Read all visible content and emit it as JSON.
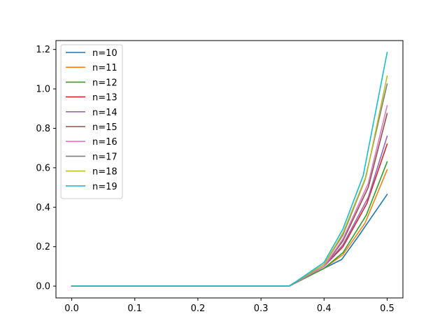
{
  "chart_data": {
    "type": "line",
    "title": "",
    "xlabel": "",
    "ylabel": "",
    "xlim": [
      -0.025,
      0.525
    ],
    "ylim": [
      -0.06,
      1.245
    ],
    "grid": false,
    "legend_position": "top-left",
    "x_ticks": [
      {
        "value": 0.0,
        "label": "0.0"
      },
      {
        "value": 0.1,
        "label": "0.1"
      },
      {
        "value": 0.2,
        "label": "0.2"
      },
      {
        "value": 0.3,
        "label": "0.3"
      },
      {
        "value": 0.4,
        "label": "0.4"
      },
      {
        "value": 0.5,
        "label": "0.5"
      }
    ],
    "y_ticks": [
      {
        "value": 0.0,
        "label": "0.0"
      },
      {
        "value": 0.2,
        "label": "0.2"
      },
      {
        "value": 0.4,
        "label": "0.4"
      },
      {
        "value": 0.6,
        "label": "0.6"
      },
      {
        "value": 0.8,
        "label": "0.8"
      },
      {
        "value": 1.0,
        "label": "1.0"
      },
      {
        "value": 1.2,
        "label": "1.2"
      }
    ],
    "series": [
      {
        "name": "n=10",
        "color": "#1f77b4",
        "x": [
          0.0,
          0.1,
          0.2,
          0.3,
          0.333,
          0.344,
          0.4,
          0.428,
          0.456,
          0.5
        ],
        "y": [
          0.0,
          0.0,
          0.0,
          0.0,
          0.0,
          0.0,
          0.09,
          0.135,
          0.26,
          0.465
        ]
      },
      {
        "name": "n=11",
        "color": "#ff7f0e",
        "x": [
          0.0,
          0.1,
          0.2,
          0.3,
          0.336,
          0.345,
          0.4,
          0.43,
          0.465,
          0.5
        ],
        "y": [
          0.0,
          0.0,
          0.0,
          0.0,
          0.0,
          0.0,
          0.09,
          0.16,
          0.32,
          0.59
        ]
      },
      {
        "name": "n=12",
        "color": "#2ca02c",
        "x": [
          0.0,
          0.1,
          0.2,
          0.3,
          0.333,
          0.345,
          0.4,
          0.43,
          0.467,
          0.5
        ],
        "y": [
          0.0,
          0.0,
          0.0,
          0.0,
          0.0,
          0.0,
          0.09,
          0.17,
          0.36,
          0.63
        ]
      },
      {
        "name": "n=13",
        "color": "#d62728",
        "x": [
          0.0,
          0.1,
          0.2,
          0.3,
          0.334,
          0.345,
          0.4,
          0.43,
          0.468,
          0.5
        ],
        "y": [
          0.0,
          0.0,
          0.0,
          0.0,
          0.0,
          0.0,
          0.1,
          0.2,
          0.42,
          0.72
        ]
      },
      {
        "name": "n=14",
        "color": "#9467bd",
        "x": [
          0.0,
          0.1,
          0.2,
          0.3,
          0.335,
          0.345,
          0.4,
          0.43,
          0.47,
          0.5
        ],
        "y": [
          0.0,
          0.0,
          0.0,
          0.0,
          0.0,
          0.0,
          0.1,
          0.21,
          0.45,
          0.76
        ]
      },
      {
        "name": "n=15",
        "color": "#8c564b",
        "x": [
          0.0,
          0.1,
          0.2,
          0.3,
          0.333,
          0.344,
          0.4,
          0.43,
          0.47,
          0.5
        ],
        "y": [
          0.0,
          0.0,
          0.0,
          0.0,
          0.0,
          0.0,
          0.1,
          0.23,
          0.5,
          0.875
        ]
      },
      {
        "name": "n=16",
        "color": "#e377c2",
        "x": [
          0.0,
          0.1,
          0.2,
          0.3,
          0.334,
          0.345,
          0.4,
          0.43,
          0.47,
          0.5
        ],
        "y": [
          0.0,
          0.0,
          0.0,
          0.0,
          0.0,
          0.0,
          0.1,
          0.24,
          0.52,
          0.915
        ]
      },
      {
        "name": "n=17",
        "color": "#7f7f7f",
        "x": [
          0.0,
          0.1,
          0.2,
          0.3,
          0.334,
          0.345,
          0.4,
          0.43,
          0.465,
          0.5
        ],
        "y": [
          0.0,
          0.0,
          0.0,
          0.0,
          0.0,
          0.0,
          0.11,
          0.26,
          0.54,
          1.025
        ]
      },
      {
        "name": "n=18",
        "color": "#bcbd22",
        "x": [
          0.0,
          0.1,
          0.2,
          0.3,
          0.333,
          0.344,
          0.4,
          0.43,
          0.467,
          0.5
        ],
        "y": [
          0.0,
          0.0,
          0.0,
          0.0,
          0.0,
          0.0,
          0.11,
          0.27,
          0.56,
          1.065
        ]
      },
      {
        "name": "n=19",
        "color": "#17becf",
        "x": [
          0.0,
          0.1,
          0.2,
          0.3,
          0.335,
          0.345,
          0.4,
          0.43,
          0.462,
          0.5
        ],
        "y": [
          0.0,
          0.0,
          0.0,
          0.0,
          0.0,
          0.0,
          0.12,
          0.29,
          0.56,
          1.185
        ]
      }
    ]
  }
}
